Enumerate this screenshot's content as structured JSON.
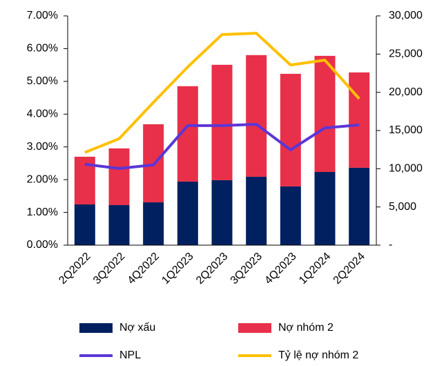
{
  "chart_data": {
    "type": "combo",
    "categories": [
      "2Q2022",
      "3Q2022",
      "4Q2022",
      "1Q2023",
      "2Q2023",
      "3Q2023",
      "4Q2023",
      "1Q2024",
      "2Q2024"
    ],
    "series": [
      {
        "name": "Nợ xấu",
        "type": "bar",
        "axis": "y2",
        "color": "#002060",
        "values": [
          5330,
          5240,
          5600,
          8320,
          8500,
          8950,
          7690,
          9580,
          10130
        ]
      },
      {
        "name": "Nợ nhóm 2",
        "type": "bar",
        "axis": "y2",
        "color": "#e8304a",
        "values": [
          6240,
          7420,
          10220,
          12480,
          15100,
          15920,
          14730,
          15190,
          12470
        ]
      },
      {
        "name": "NPL",
        "type": "line",
        "color": "#5b36d6",
        "values": [
          2.47,
          2.34,
          2.45,
          3.65,
          3.65,
          3.69,
          2.91,
          3.58,
          3.67
        ]
      },
      {
        "name": "Tỷ lệ nợ nhóm 2",
        "type": "line",
        "color": "#ffc000",
        "values": [
          2.83,
          3.25,
          4.36,
          5.44,
          6.43,
          6.47,
          5.5,
          5.65,
          4.47
        ]
      }
    ],
    "ylim": [
      0,
      7
    ],
    "yticks": [
      {
        "value": 0,
        "label": "0.00%"
      },
      {
        "value": 1,
        "label": "1.00%"
      },
      {
        "value": 2,
        "label": "2.00%"
      },
      {
        "value": 3,
        "label": "3.00%"
      },
      {
        "value": 4,
        "label": "4.00%"
      },
      {
        "value": 5,
        "label": "5.00%"
      },
      {
        "value": 6,
        "label": "6.00%"
      },
      {
        "value": 7,
        "label": "7.00%"
      }
    ],
    "y2lim": [
      0,
      30000
    ],
    "y2ticks": [
      {
        "value": 0,
        "label": "-"
      },
      {
        "value": 5000,
        "label": "5,000"
      },
      {
        "value": 10000,
        "label": "10,000"
      },
      {
        "value": 15000,
        "label": "15,000"
      },
      {
        "value": 20000,
        "label": "20,000"
      },
      {
        "value": 25000,
        "label": "25,000"
      },
      {
        "value": 30000,
        "label": "30,000"
      }
    ],
    "stacked": true
  }
}
